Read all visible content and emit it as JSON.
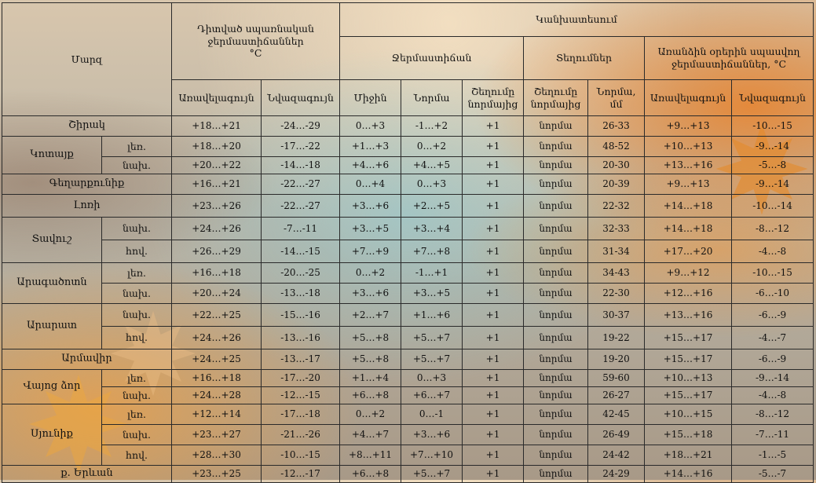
{
  "header": {
    "region": "Մարզ",
    "observed": [
      "Դիտված սպառնական",
      "ջերմաստիճաններ",
      "°C"
    ],
    "forecast": "Կանխատեսում",
    "temperature": "Ջերմաստիճան",
    "precipitation": "Տեղումներ",
    "extreme": [
      "Առանձին օրերին սպասվող",
      "ջերմաստիճաններ, °C"
    ],
    "max": "Առավելագույն",
    "min": "Նվազագույն",
    "mean": "Միջին",
    "norm": "Նորմա",
    "deviation": [
      "Շեղումը",
      "նորմայից"
    ],
    "norm_mm": [
      "Նորմա,",
      "մմ"
    ]
  },
  "rows": [
    {
      "region": "Շիրակ",
      "sub": "",
      "max": "+18…+21",
      "min": "-24…-29",
      "mean": "0…+3",
      "norm": "-1…+2",
      "dev": "+1",
      "prec": "նորմա",
      "pnorm": "26-33",
      "emax": "+9…+13",
      "emin": "-10…-15"
    },
    {
      "region": "Կոտայք",
      "sub": "լեռ.",
      "max": "+18…+20",
      "min": "-17…-22",
      "mean": "+1…+3",
      "norm": "0…+2",
      "dev": "+1",
      "prec": "նորմա",
      "pnorm": "48-52",
      "emax": "+10…+13",
      "emin": "-9…-14"
    },
    {
      "region": "",
      "sub": "նախ.",
      "max": "+20…+22",
      "min": "-14…-18",
      "mean": "+4…+6",
      "norm": "+4…+5",
      "dev": "+1",
      "prec": "նորմա",
      "pnorm": "20-30",
      "emax": "+13…+16",
      "emin": "-5…-8"
    },
    {
      "region": "Գեղարքունիք",
      "sub": "",
      "max": "+16…+21",
      "min": "-22…-27",
      "mean": "0…+4",
      "norm": "0…+3",
      "dev": "+1",
      "prec": "նորմա",
      "pnorm": "20-39",
      "emax": "+9…+13",
      "emin": "-9…-14"
    },
    {
      "region": "Լոռի",
      "sub": "",
      "max": "+23…+26",
      "min": "-22…-27",
      "mean": "+3…+6",
      "norm": "+2…+5",
      "dev": "+1",
      "prec": "նորմա",
      "pnorm": "22-32",
      "emax": "+14…+18",
      "emin": "-10…-14"
    },
    {
      "region": "Տավուշ",
      "sub": "նախ.",
      "max": "+24…+26",
      "min": "-7…-11",
      "mean": "+3…+5",
      "norm": "+3…+4",
      "dev": "+1",
      "prec": "նորմա",
      "pnorm": "32-33",
      "emax": "+14…+18",
      "emin": "-8…-12"
    },
    {
      "region": "",
      "sub": "հով.",
      "max": "+26…+29",
      "min": "-14…-15",
      "mean": "+7…+9",
      "norm": "+7…+8",
      "dev": "+1",
      "prec": "նորմա",
      "pnorm": "31-34",
      "emax": "+17…+20",
      "emin": "-4…-8"
    },
    {
      "region": "Արագածոտն",
      "sub": "լեռ.",
      "max": "+16…+18",
      "min": "-20…-25",
      "mean": "0…+2",
      "norm": "-1…+1",
      "dev": "+1",
      "prec": "նորմա",
      "pnorm": "34-43",
      "emax": "+9…+12",
      "emin": "-10…-15"
    },
    {
      "region": "",
      "sub": "նախ.",
      "max": "+20…+24",
      "min": "-13…-18",
      "mean": "+3…+6",
      "norm": "+3…+5",
      "dev": "+1",
      "prec": "նորմա",
      "pnorm": "22-30",
      "emax": "+12…+16",
      "emin": "-6…-10"
    },
    {
      "region": "Արարատ",
      "sub": "նախ.",
      "max": "+22…+25",
      "min": "-15…-16",
      "mean": "+2…+7",
      "norm": "+1…+6",
      "dev": "+1",
      "prec": "նորմա",
      "pnorm": "30-37",
      "emax": "+13…+16",
      "emin": "-6…-9"
    },
    {
      "region": "",
      "sub": "հով.",
      "max": "+24…+26",
      "min": "-13…-16",
      "mean": "+5…+8",
      "norm": "+5…+7",
      "dev": "+1",
      "prec": "նորմա",
      "pnorm": "19-22",
      "emax": "+15…+17",
      "emin": "-4…-7"
    },
    {
      "region": "Արմավիր",
      "sub": "",
      "max": "+24…+25",
      "min": "-13…-17",
      "mean": "+5…+8",
      "norm": "+5…+7",
      "dev": "+1",
      "prec": "նորմա",
      "pnorm": "19-20",
      "emax": "+15…+17",
      "emin": "-6…-9"
    },
    {
      "region": "Վայոց ձոր",
      "sub": "լեռ.",
      "max": "+16…+18",
      "min": "-17…-20",
      "mean": "+1…+4",
      "norm": "0…+3",
      "dev": "+1",
      "prec": "նորմա",
      "pnorm": "59-60",
      "emax": "+10…+13",
      "emin": "-9…-14"
    },
    {
      "region": "",
      "sub": "նախ.",
      "max": "+24…+28",
      "min": "-12…-15",
      "mean": "+6…+8",
      "norm": "+6…+7",
      "dev": "+1",
      "prec": "նորմա",
      "pnorm": "26-27",
      "emax": "+15…+17",
      "emin": "-4…-8"
    },
    {
      "region": "Սյունիք",
      "sub": "լեռ.",
      "max": "+12…+14",
      "min": "-17…-18",
      "mean": "0…+2",
      "norm": "0…-1",
      "dev": "+1",
      "prec": "նորմա",
      "pnorm": "42-45",
      "emax": "+10…+15",
      "emin": "-8…-12"
    },
    {
      "region": "",
      "sub": "նախ.",
      "max": "+23…+27",
      "min": "-21…-26",
      "mean": "+4…+7",
      "norm": "+3…+6",
      "dev": "+1",
      "prec": "նորմա",
      "pnorm": "26-49",
      "emax": "+15…+18",
      "emin": "-7…-11"
    },
    {
      "region": "",
      "sub": "հով.",
      "max": "+28…+30",
      "min": "-10…-15",
      "mean": "+8…+11",
      "norm": "+7…+10",
      "dev": "+1",
      "prec": "նորմա",
      "pnorm": "24-42",
      "emax": "+18…+21",
      "emin": "-1…-5"
    },
    {
      "region": "ք. Երևան",
      "sub": "",
      "max": "+23…+25",
      "min": "-12…-17",
      "mean": "+6…+8",
      "norm": "+5…+7",
      "dev": "+1",
      "prec": "նորմա",
      "pnorm": "24-29",
      "emax": "+14…+16",
      "emin": "-5…-7"
    }
  ]
}
